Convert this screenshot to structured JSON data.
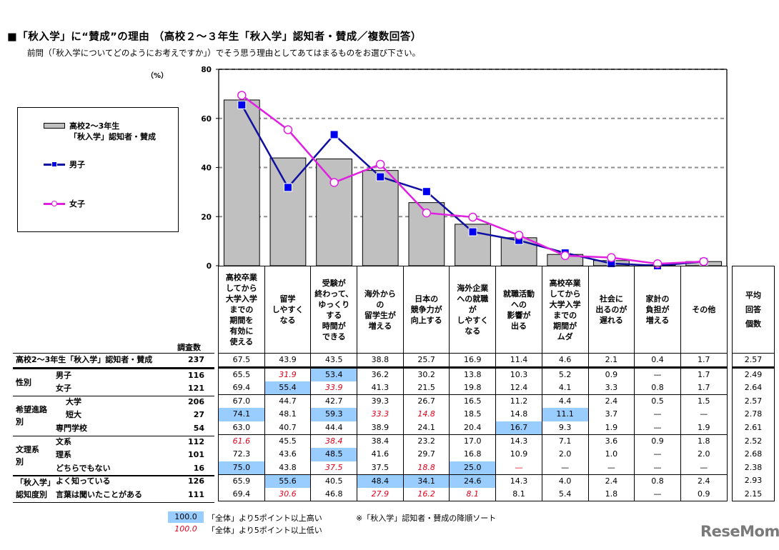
{
  "title": "■「秋入学」に“賛成”の理由 （高校２～３年生「秋入学」認知者・賛成／複数回答）",
  "subtitle": "前問（｢秋入学についてどのようにお考えですか｣）でそう思う理由としてあてはまるものをお選び下さい。",
  "unit_label": "（%）",
  "legend": {
    "bar_label": "高校2～3年生\n「秋入学」認知者・賛成",
    "male_label": "男子",
    "female_label": "女子"
  },
  "colors": {
    "bar_fill": "#c0c0c0",
    "male_line": "#1010a0",
    "male_marker": "#0000ee",
    "female_line": "#e020e0",
    "highlight_high": "#99ccff",
    "highlight_low_text": "#e0001a",
    "grid": "#909090"
  },
  "chart_data": {
    "type": "bar",
    "title": "「秋入学」に“賛成”の理由 （高校２～３年生「秋入学」認知者・賛成／複数回答）",
    "xlabel": "",
    "ylabel": "（%）",
    "ylim": [
      0,
      80
    ],
    "yticks": [
      0,
      20,
      40,
      60,
      80
    ],
    "grid": "dashed horizontal at 20,40,60",
    "legend_position": "left box",
    "categories": [
      "高校卒業してから大学入学までの期間を有効に使える",
      "留学しやすくなる",
      "受験が終わって、ゆっくりする時間ができる",
      "海外からの留学生が増える",
      "日本の競争力が向上する",
      "海外企業への就職がしやすくなる",
      "就職活動への影響が出る",
      "高校卒業してから大学入学までの期間がムダ",
      "社会に出るのが遅れる",
      "家計の負担が増える",
      "その他"
    ],
    "series": [
      {
        "name": "高校2～3年生「秋入学」認知者・賛成",
        "type": "bar",
        "values": [
          67.5,
          43.9,
          43.5,
          38.8,
          25.7,
          16.9,
          11.4,
          4.6,
          2.1,
          0.4,
          1.7
        ]
      },
      {
        "name": "男子",
        "type": "line",
        "marker": "square",
        "values": [
          65.5,
          31.9,
          53.4,
          36.2,
          30.2,
          13.8,
          10.3,
          5.2,
          0.9,
          0,
          1.7
        ]
      },
      {
        "name": "女子",
        "type": "line",
        "marker": "circle",
        "values": [
          69.4,
          55.4,
          33.9,
          41.3,
          21.5,
          19.8,
          12.4,
          4.1,
          3.3,
          0.8,
          1.7
        ]
      }
    ]
  },
  "table": {
    "column_headers": [
      "高校卒業\nしてから\n大学入学\nまでの\n期間を\n有効に\n使える",
      "留学\nしやすく\nなる",
      "受験が\n終わって、\nゆっくり\nする\n時間が\nできる",
      "海外から\nの\n留学生が\n増える",
      "日本の\n競争力が\n向上する",
      "海外企業\nへの就職\nが\nしやすく\nなる",
      "就職活動\nへの\n影響が\n出る",
      "高校卒業\nしてから\n大学入学\nまでの\n期間が\nムダ",
      "社会に\n出るのが\n遅れる",
      "家計の\n負担が\n増える",
      "その他"
    ],
    "avg_header": "平均\n回答\n個数",
    "n_header": "調査数",
    "groups": [
      {
        "label": "",
        "rows": [
          {
            "label": "高校2～3年生「秋入学」認知者・賛成",
            "n": "237",
            "avg": "2.57",
            "cells": [
              [
                "67.5",
                ""
              ],
              [
                "43.9",
                ""
              ],
              [
                "43.5",
                ""
              ],
              [
                "38.8",
                ""
              ],
              [
                "25.7",
                ""
              ],
              [
                "16.9",
                ""
              ],
              [
                "11.4",
                ""
              ],
              [
                "4.6",
                ""
              ],
              [
                "2.1",
                ""
              ],
              [
                "0.4",
                ""
              ],
              [
                "1.7",
                ""
              ]
            ]
          }
        ]
      },
      {
        "label": "性別",
        "rows": [
          {
            "label": "男子",
            "n": "116",
            "avg": "2.49",
            "cells": [
              [
                "65.5",
                ""
              ],
              [
                "31.9",
                "lo"
              ],
              [
                "53.4",
                "hi"
              ],
              [
                "36.2",
                ""
              ],
              [
                "30.2",
                ""
              ],
              [
                "13.8",
                ""
              ],
              [
                "10.3",
                ""
              ],
              [
                "5.2",
                ""
              ],
              [
                "0.9",
                ""
              ],
              [
                "—",
                ""
              ],
              [
                "1.7",
                ""
              ]
            ]
          },
          {
            "label": "女子",
            "n": "121",
            "avg": "2.64",
            "cells": [
              [
                "69.4",
                ""
              ],
              [
                "55.4",
                "hi"
              ],
              [
                "33.9",
                "lo"
              ],
              [
                "41.3",
                ""
              ],
              [
                "21.5",
                ""
              ],
              [
                "19.8",
                ""
              ],
              [
                "12.4",
                ""
              ],
              [
                "4.1",
                ""
              ],
              [
                "3.3",
                ""
              ],
              [
                "0.8",
                ""
              ],
              [
                "1.7",
                ""
              ]
            ]
          }
        ]
      },
      {
        "label": "希望進路\n別",
        "rows": [
          {
            "label": "大学",
            "n": "206",
            "avg": "2.57",
            "cells": [
              [
                "67.0",
                ""
              ],
              [
                "44.7",
                ""
              ],
              [
                "42.7",
                ""
              ],
              [
                "39.3",
                ""
              ],
              [
                "26.7",
                ""
              ],
              [
                "16.5",
                ""
              ],
              [
                "11.2",
                ""
              ],
              [
                "4.4",
                ""
              ],
              [
                "2.4",
                ""
              ],
              [
                "0.5",
                ""
              ],
              [
                "1.5",
                ""
              ]
            ]
          },
          {
            "label": "短大",
            "n": "27",
            "avg": "2.78",
            "cells": [
              [
                "74.1",
                "hi"
              ],
              [
                "48.1",
                ""
              ],
              [
                "59.3",
                "hi"
              ],
              [
                "33.3",
                "lo"
              ],
              [
                "14.8",
                "lo"
              ],
              [
                "18.5",
                ""
              ],
              [
                "14.8",
                ""
              ],
              [
                "11.1",
                "hi"
              ],
              [
                "3.7",
                ""
              ],
              [
                "—",
                ""
              ],
              [
                "—",
                ""
              ]
            ]
          },
          {
            "label": "専門学校",
            "n": "54",
            "avg": "2.61",
            "cells": [
              [
                "63.0",
                ""
              ],
              [
                "40.7",
                ""
              ],
              [
                "44.4",
                ""
              ],
              [
                "38.9",
                ""
              ],
              [
                "24.1",
                ""
              ],
              [
                "20.4",
                ""
              ],
              [
                "16.7",
                "hi"
              ],
              [
                "9.3",
                ""
              ],
              [
                "1.9",
                ""
              ],
              [
                "—",
                ""
              ],
              [
                "1.9",
                ""
              ]
            ]
          }
        ]
      },
      {
        "label": "文理系\n別",
        "rows": [
          {
            "label": "文系",
            "n": "112",
            "avg": "2.52",
            "cells": [
              [
                "61.6",
                "lo"
              ],
              [
                "45.5",
                ""
              ],
              [
                "38.4",
                "lo"
              ],
              [
                "38.4",
                ""
              ],
              [
                "23.2",
                ""
              ],
              [
                "17.0",
                ""
              ],
              [
                "14.3",
                ""
              ],
              [
                "7.1",
                ""
              ],
              [
                "3.6",
                ""
              ],
              [
                "0.9",
                ""
              ],
              [
                "1.8",
                ""
              ]
            ]
          },
          {
            "label": "理系",
            "n": "101",
            "avg": "2.68",
            "cells": [
              [
                "72.3",
                ""
              ],
              [
                "43.6",
                ""
              ],
              [
                "48.5",
                "hi"
              ],
              [
                "41.6",
                ""
              ],
              [
                "29.7",
                ""
              ],
              [
                "16.8",
                ""
              ],
              [
                "10.9",
                ""
              ],
              [
                "2.0",
                ""
              ],
              [
                "1.0",
                ""
              ],
              [
                "—",
                ""
              ],
              [
                "2.0",
                ""
              ]
            ]
          },
          {
            "label": "どちらでもない",
            "n": "16",
            "avg": "2.38",
            "cells": [
              [
                "75.0",
                "hi"
              ],
              [
                "43.8",
                ""
              ],
              [
                "37.5",
                "lo"
              ],
              [
                "37.5",
                ""
              ],
              [
                "18.8",
                "lo"
              ],
              [
                "25.0",
                "hi"
              ],
              [
                "—",
                "lo"
              ],
              [
                "—",
                ""
              ],
              [
                "—",
                ""
              ],
              [
                "—",
                ""
              ],
              [
                "—",
                ""
              ]
            ]
          }
        ]
      },
      {
        "label": "「秋入学」\n認知度別",
        "rows": [
          {
            "label": "よく知っている",
            "n": "126",
            "avg": "2.93",
            "cells": [
              [
                "65.9",
                ""
              ],
              [
                "55.6",
                "hi"
              ],
              [
                "40.5",
                ""
              ],
              [
                "48.4",
                "hi"
              ],
              [
                "34.1",
                "hi"
              ],
              [
                "24.6",
                "hi"
              ],
              [
                "14.3",
                ""
              ],
              [
                "4.0",
                ""
              ],
              [
                "2.4",
                ""
              ],
              [
                "0.8",
                ""
              ],
              [
                "2.4",
                ""
              ]
            ]
          },
          {
            "label": "言葉は聞いたことがある",
            "n": "111",
            "avg": "2.15",
            "cells": [
              [
                "69.4",
                ""
              ],
              [
                "30.6",
                "lo"
              ],
              [
                "46.8",
                ""
              ],
              [
                "27.9",
                "lo"
              ],
              [
                "16.2",
                "lo"
              ],
              [
                "8.1",
                "lo"
              ],
              [
                "8.1",
                ""
              ],
              [
                "5.4",
                ""
              ],
              [
                "1.8",
                ""
              ],
              [
                "—",
                ""
              ],
              [
                "0.9",
                ""
              ]
            ]
          }
        ]
      }
    ]
  },
  "footnotes": {
    "key_high_value": "100.0",
    "key_high_label": "「全体」より5ポイント以上高い",
    "key_low_value": "100.0",
    "key_low_label": "「全体」より5ポイント以上低い",
    "sort_note": "※「秋入学」認知者・賛成の降順ソート"
  },
  "watermark": "ReseMom"
}
